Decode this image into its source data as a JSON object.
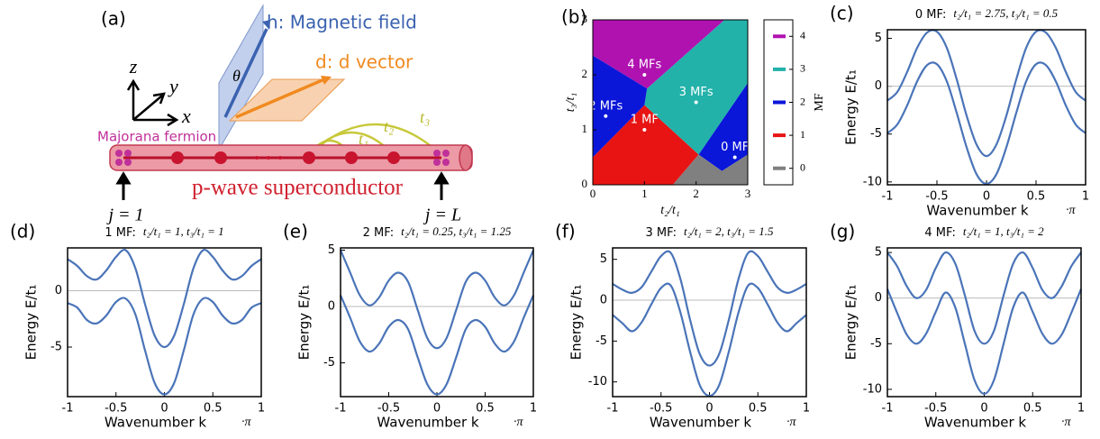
{
  "diagram": {
    "panel": "(a)",
    "axis_z": "z",
    "axis_y": "y",
    "axis_x": "x",
    "field": "h: Magnetic field",
    "theta": "θ",
    "dvector": "d: d vector",
    "majorana": "Majorana fermion",
    "t1": "t₁",
    "t2": "t₂",
    "t3": "t₃",
    "wire": "p-wave superconductor",
    "site_first": "j = 1",
    "site_last": "j = L"
  },
  "chart_data": [
    {
      "type": "phase",
      "panel": "(b)",
      "xlabel": "t₂/t₁",
      "ylabel": "t₃/t₁",
      "xlim": [
        0,
        3
      ],
      "ylim": [
        0,
        3
      ],
      "xticks": [
        0,
        1,
        2,
        3
      ],
      "yticks": [
        0,
        1,
        2,
        3
      ],
      "colorbar": {
        "label": "MF",
        "clim": [
          -0.5,
          4.5
        ],
        "ticks": [
          0,
          1,
          2,
          3,
          4
        ],
        "colors": [
          "#808080",
          "#e81414",
          "#0a16d8",
          "#22b2aa",
          "#b012b0"
        ]
      },
      "regions": [
        {
          "mf": 1,
          "polygon": [
            [
              0,
              0
            ],
            [
              1.55,
              0
            ],
            [
              2.05,
              0.55
            ],
            [
              1.0,
              1.45
            ],
            [
              0,
              0.5
            ]
          ]
        },
        {
          "mf": 3,
          "polygon": [
            [
              1.05,
              1.75
            ],
            [
              2.55,
              3
            ],
            [
              3,
              3
            ],
            [
              3,
              1.85
            ],
            [
              2.05,
              0.55
            ],
            [
              1.0,
              1.45
            ]
          ]
        },
        {
          "mf": 4,
          "polygon": [
            [
              0,
              2.35
            ],
            [
              0,
              3
            ],
            [
              2.55,
              3
            ],
            [
              1.05,
              1.75
            ]
          ]
        },
        {
          "mf": 2,
          "polygon": [
            [
              0,
              0.5
            ],
            [
              0,
              2.35
            ],
            [
              1.05,
              1.75
            ],
            [
              1.0,
              1.45
            ]
          ]
        },
        {
          "mf": 2,
          "polygon": [
            [
              2.05,
              0.55
            ],
            [
              2.5,
              0.25
            ],
            [
              3,
              0.55
            ],
            [
              3,
              1.85
            ]
          ]
        },
        {
          "mf": 0,
          "polygon": [
            [
              1.55,
              0
            ],
            [
              3,
              0
            ],
            [
              3,
              0.55
            ],
            [
              2.5,
              0.25
            ],
            [
              2.05,
              0.55
            ]
          ]
        }
      ],
      "points": [
        {
          "label": "4 MFs",
          "x": 1,
          "y": 2
        },
        {
          "label": "3 MFs",
          "x": 2,
          "y": 1.5
        },
        {
          "label": "2 MFs",
          "x": 0.25,
          "y": 1.25
        },
        {
          "label": "1 MF",
          "x": 1,
          "y": 1
        },
        {
          "label": "0 MF",
          "x": 2.75,
          "y": 0.5
        }
      ]
    },
    {
      "type": "line",
      "panel": "(c)",
      "title": "0 MF:",
      "subtitle": "t₂/t₁ = 2.75, t₃/t₁ = 0.5",
      "xlabel": "Wavenumber k",
      "xunit": "·π",
      "ylabel": "Energy E/t₁",
      "xlim": [
        -1,
        1
      ],
      "xticks": [
        -1,
        -0.5,
        0,
        0.5,
        1
      ],
      "ylim": [
        -10.3,
        5.9
      ],
      "yticks": [
        -10,
        -5,
        0,
        5
      ],
      "x": [
        -1,
        -0.9,
        -0.8,
        -0.7,
        -0.6,
        -0.5,
        -0.4,
        -0.3,
        -0.2,
        -0.1,
        0,
        0.1,
        0.2,
        0.3,
        0.4,
        0.5,
        0.6,
        0.7,
        0.8,
        0.9,
        1
      ],
      "series": [
        {
          "color": "#4a74b8",
          "values": [
            -1.5,
            -0.6,
            1.5,
            4,
            5.6,
            5.7,
            4,
            0.7,
            -3.1,
            -6.1,
            -7.3,
            -6.1,
            -3.1,
            0.7,
            4,
            5.7,
            5.6,
            4,
            1.5,
            -0.6,
            -1.5
          ]
        },
        {
          "color": "#4a74b8",
          "values": [
            -4.9,
            -4,
            -2,
            0.5,
            2.2,
            2.3,
            0.5,
            -2.8,
            -6.4,
            -9.2,
            -10.2,
            -9.2,
            -6.4,
            -2.8,
            0.5,
            2.3,
            2.2,
            0.5,
            -2,
            -4,
            -4.9
          ]
        }
      ]
    },
    {
      "type": "line",
      "panel": "(d)",
      "title": "1 MF:",
      "subtitle": "t₂/t₁ = 1, t₃/t₁ = 1",
      "xlabel": "Wavenumber k",
      "xunit": "·π",
      "ylabel": "Energy E/t₁",
      "xlim": [
        -1,
        1
      ],
      "xticks": [
        -1,
        -0.5,
        0,
        0.5,
        1
      ],
      "ylim": [
        -9.4,
        3.8
      ],
      "yticks": [
        -5,
        0
      ],
      "x": [
        -1,
        -0.9,
        -0.8,
        -0.7,
        -0.6,
        -0.5,
        -0.4,
        -0.3,
        -0.2,
        -0.1,
        0,
        0.1,
        0.2,
        0.3,
        0.4,
        0.5,
        0.6,
        0.7,
        0.8,
        0.9,
        1
      ],
      "series": [
        {
          "color": "#4a74b8",
          "values": [
            2.8,
            2.2,
            1.3,
            1,
            1.8,
            3,
            3.6,
            2,
            -1.2,
            -4,
            -5,
            -4,
            -1.2,
            2,
            3.6,
            3,
            1.8,
            1,
            1.3,
            2.2,
            2.8
          ]
        },
        {
          "color": "#4a74b8",
          "values": [
            -1.1,
            -1.5,
            -2.6,
            -2.9,
            -2.2,
            -1,
            -0.7,
            -2.1,
            -5.3,
            -8.2,
            -9.2,
            -8.2,
            -5.3,
            -2.1,
            -0.7,
            -1,
            -2.2,
            -2.9,
            -2.6,
            -1.5,
            -1.1
          ]
        }
      ]
    },
    {
      "type": "line",
      "panel": "(e)",
      "title": "2 MF:",
      "subtitle": "t₂/t₁ = 0.25, t₃/t₁ = 1.25",
      "xlabel": "Wavenumber k",
      "xunit": "·π",
      "ylabel": "Energy E/t₁",
      "xlim": [
        -1,
        1
      ],
      "xticks": [
        -1,
        -0.5,
        0,
        0.5,
        1
      ],
      "ylim": [
        -8,
        5.2
      ],
      "yticks": [
        -5,
        0,
        5
      ],
      "x": [
        -1,
        -0.9,
        -0.8,
        -0.7,
        -0.6,
        -0.5,
        -0.4,
        -0.3,
        -0.2,
        -0.1,
        0,
        0.1,
        0.2,
        0.3,
        0.4,
        0.5,
        0.6,
        0.7,
        0.8,
        0.9,
        1
      ],
      "series": [
        {
          "color": "#4a74b8",
          "values": [
            5,
            3,
            1,
            0.1,
            0.8,
            2.3,
            3,
            2.2,
            -0.3,
            -2.8,
            -3.7,
            -2.8,
            -0.3,
            2.2,
            3,
            2.3,
            0.8,
            0.1,
            1,
            3,
            5
          ]
        },
        {
          "color": "#4a74b8",
          "values": [
            1,
            -1,
            -3.1,
            -4,
            -3.3,
            -1.8,
            -1.2,
            -2,
            -4.5,
            -6.9,
            -7.8,
            -6.9,
            -4.5,
            -2,
            -1.2,
            -1.8,
            -3.3,
            -4,
            -3.1,
            -1,
            1
          ]
        }
      ]
    },
    {
      "type": "line",
      "panel": "(f)",
      "title": "3 MF:",
      "subtitle": "t₂/t₁ = 2, t₃/t₁ = 1.5",
      "xlabel": "Wavenumber k",
      "xunit": "·π",
      "ylabel": "Energy E/t₁",
      "xlim": [
        -1,
        1
      ],
      "xticks": [
        -1,
        -0.5,
        0,
        0.5,
        1
      ],
      "ylim": [
        -11.8,
        6.4
      ],
      "yticks": [
        -10,
        -5,
        0,
        5
      ],
      "x": [
        -1,
        -0.9,
        -0.8,
        -0.7,
        -0.6,
        -0.5,
        -0.4,
        -0.3,
        -0.2,
        -0.1,
        0,
        0.1,
        0.2,
        0.3,
        0.4,
        0.5,
        0.6,
        0.7,
        0.8,
        0.9,
        1
      ],
      "series": [
        {
          "color": "#4a74b8",
          "values": [
            2,
            1.3,
            0.9,
            1.6,
            3.5,
            5.4,
            5.8,
            2.6,
            -2.4,
            -6.6,
            -8,
            -6.6,
            -2.4,
            2.6,
            5.8,
            5.4,
            3.5,
            1.6,
            0.9,
            1.3,
            2
          ]
        },
        {
          "color": "#4a74b8",
          "values": [
            -1.8,
            -2.8,
            -3.8,
            -2.7,
            -0.5,
            1.5,
            1.8,
            -1.5,
            -6.3,
            -10.4,
            -11.7,
            -10.4,
            -6.3,
            -1.5,
            1.8,
            1.5,
            -0.5,
            -2.7,
            -3.8,
            -2.8,
            -1.8
          ]
        }
      ]
    },
    {
      "type": "line",
      "panel": "(g)",
      "title": "4 MF:",
      "subtitle": "t₂/t₁ = 1, t₃/t₁ = 2",
      "xlabel": "Wavenumber k",
      "xunit": "·π",
      "ylabel": "Energy E/t₁",
      "xlim": [
        -1,
        1
      ],
      "xticks": [
        -1,
        -0.5,
        0,
        0.5,
        1
      ],
      "ylim": [
        -10.8,
        5.5
      ],
      "yticks": [
        -10,
        -5,
        0,
        5
      ],
      "x": [
        -1,
        -0.9,
        -0.8,
        -0.7,
        -0.6,
        -0.5,
        -0.4,
        -0.3,
        -0.2,
        -0.1,
        0,
        0.1,
        0.2,
        0.3,
        0.4,
        0.5,
        0.6,
        0.7,
        0.8,
        0.9,
        1
      ],
      "series": [
        {
          "color": "#4a74b8",
          "values": [
            5,
            3.5,
            1.3,
            0,
            0.9,
            3.3,
            5,
            3.8,
            0.3,
            -3.6,
            -5,
            -3.6,
            0.3,
            3.8,
            5,
            3.3,
            0.9,
            0,
            1.3,
            3.5,
            5
          ]
        },
        {
          "color": "#4a74b8",
          "values": [
            1,
            -1.6,
            -4,
            -5,
            -3.9,
            -1.5,
            0.6,
            -1,
            -5,
            -9,
            -10.5,
            -9,
            -5,
            -1,
            0.6,
            -1.5,
            -3.9,
            -5,
            -4,
            -1.6,
            1
          ]
        }
      ]
    }
  ]
}
